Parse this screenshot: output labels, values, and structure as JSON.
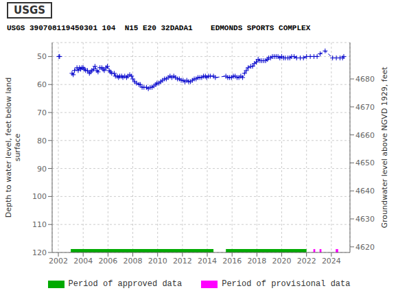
{
  "chart_data": {
    "type": "line",
    "title": "USGS 390708119450301 104  N15 E20 32DADA1    EDMONDS SPORTS COMPLEX",
    "annotations": [
      {
        "text": "USGS"
      }
    ],
    "ylabel": "Depth to water level, feet below land\nsurface",
    "y2label": "Groundwater level above NGVD 1929, feet",
    "xlim": [
      2001.5,
      2025.5
    ],
    "xticks": [
      2002,
      2004,
      2006,
      2008,
      2010,
      2012,
      2014,
      2016,
      2018,
      2020,
      2022,
      2024
    ],
    "ylim": [
      120,
      45
    ],
    "yticks": [
      50,
      60,
      70,
      80,
      90,
      100,
      110,
      120
    ],
    "y2lim": [
      4618,
      4693
    ],
    "y2ticks": [
      4620,
      4630,
      4640,
      4650,
      4660,
      4670,
      4680
    ],
    "grid": true,
    "legend": "bottom",
    "series": [
      {
        "type": "line",
        "color": "#0000cc",
        "marker": "plus",
        "line_style": "dashed",
        "x": [
          2002.05,
          2002.1
        ],
        "values": [
          50,
          50
        ]
      },
      {
        "type": "line",
        "color": "#0000cc",
        "marker": "plus",
        "line_style": "dashed",
        "x": [
          2003.1,
          2003.2,
          2003.3,
          2003.5,
          2003.6,
          2003.7,
          2003.8,
          2003.9,
          2004.0,
          2004.1,
          2004.2,
          2004.35,
          2004.5,
          2004.6,
          2004.7,
          2004.85,
          2004.95,
          2005.1,
          2005.2,
          2005.35,
          2005.5,
          2005.6,
          2005.7,
          2005.85,
          2005.95,
          2006.1,
          2006.2,
          2006.3,
          2006.5,
          2006.6,
          2006.75,
          2006.85,
          2006.95,
          2007.1,
          2007.2,
          2007.35,
          2007.5,
          2007.6,
          2007.75,
          2007.9,
          2008.0,
          2008.15,
          2008.3,
          2008.5,
          2008.6,
          2008.75,
          2008.9,
          2009.1,
          2009.25,
          2009.4,
          2009.55,
          2009.7,
          2009.85,
          2009.95,
          2010.1,
          2010.25,
          2010.4,
          2010.55,
          2010.7,
          2010.85,
          2011.0,
          2011.15,
          2011.3,
          2011.45,
          2011.6,
          2011.75,
          2011.9,
          2012.05,
          2012.2,
          2012.35,
          2012.5,
          2012.65,
          2012.8,
          2012.95,
          2013.1,
          2013.25,
          2013.4,
          2013.55,
          2013.7,
          2013.85,
          2013.95,
          2014.1,
          2014.25,
          2014.5,
          2014.65,
          2015.5,
          2015.65,
          2015.8,
          2015.95,
          2016.1,
          2016.25,
          2016.4,
          2016.55,
          2016.7,
          2016.85,
          2017.0,
          2017.15,
          2017.3,
          2017.5,
          2017.65,
          2017.8,
          2017.95,
          2018.1,
          2018.25,
          2018.4,
          2018.55,
          2018.7,
          2018.85,
          2018.95,
          2019.1,
          2019.25,
          2019.4,
          2019.55,
          2019.7,
          2019.85,
          2020.0,
          2020.15,
          2020.3,
          2020.5,
          2020.65,
          2020.8,
          2021.0,
          2021.2,
          2021.5,
          2021.75,
          2022.0,
          2022.3,
          2022.6,
          2022.85,
          2023.1,
          2023.5,
          2024.1,
          2024.4,
          2024.7,
          2024.9,
          2025.0
        ],
        "values": [
          56,
          56.5,
          55,
          54,
          55,
          54,
          54.5,
          54,
          54,
          54.5,
          55,
          55,
          56,
          55.5,
          55,
          54.5,
          53.5,
          55,
          55.5,
          54,
          54,
          54.5,
          55,
          54,
          53.5,
          55,
          55.5,
          56,
          56,
          57,
          57,
          57.5,
          57,
          57,
          57.5,
          57,
          57.5,
          57,
          56.5,
          57,
          58,
          59,
          59.5,
          60,
          60,
          61,
          61,
          61,
          61.5,
          61,
          61,
          60.5,
          60,
          59.5,
          59.5,
          59,
          58.5,
          58,
          58,
          57.5,
          57,
          57.5,
          57,
          57.5,
          58,
          58,
          58.5,
          58.5,
          59,
          58.5,
          59,
          59,
          58.5,
          58,
          58,
          57.5,
          57.5,
          57.5,
          57,
          57,
          57.5,
          57,
          57,
          57,
          57.5,
          57,
          57.5,
          57.5,
          57.5,
          57,
          57,
          57.5,
          57.5,
          57,
          57.5,
          56,
          55,
          54,
          53.5,
          53.5,
          52.5,
          52,
          51,
          51.5,
          51.5,
          51.5,
          51.5,
          51,
          50.5,
          50.5,
          50,
          50,
          50,
          50,
          50.5,
          50,
          50.5,
          50.5,
          50.5,
          50.5,
          50,
          50,
          50.5,
          50.5,
          50.5,
          50,
          50,
          50,
          50,
          49,
          48,
          50.5,
          50.5,
          50.5,
          50.5,
          50
        ]
      },
      {
        "type": "band",
        "name": "Period of approved data",
        "color": "#00aa00",
        "segments": [
          [
            2003.0,
            2014.5
          ],
          [
            2015.5,
            2022.0
          ]
        ],
        "y_range": [
          118.8,
          121.2
        ]
      },
      {
        "type": "band",
        "name": "Period of provisional data",
        "color": "#ff00ff",
        "segments": [
          [
            2022.55,
            2022.7
          ],
          [
            2023.05,
            2023.2
          ],
          [
            2024.35,
            2024.55
          ]
        ],
        "y_range": [
          118.8,
          121.2
        ]
      }
    ]
  }
}
